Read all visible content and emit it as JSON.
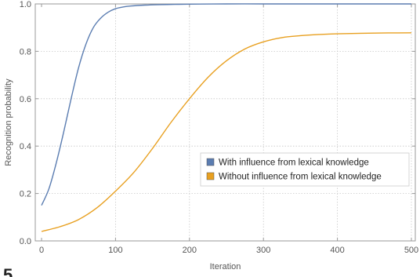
{
  "chart_data": {
    "type": "line",
    "title": "",
    "xlabel": "Iteration",
    "ylabel": "Recognition probability",
    "xlim": [
      0,
      500
    ],
    "ylim": [
      0,
      1
    ],
    "xticks": [
      0,
      100,
      200,
      300,
      400,
      500
    ],
    "yticks": [
      0.0,
      0.2,
      0.4,
      0.6,
      0.8,
      1.0
    ],
    "ytick_labels": [
      "0.0",
      "0.2",
      "0.4",
      "0.6",
      "0.8",
      "1.0"
    ],
    "grid": true,
    "legend_position": "center-right",
    "series": [
      {
        "name": "With influence from lexical knowledge",
        "color": "#5b7db1",
        "x": [
          0,
          10,
          20,
          30,
          40,
          50,
          60,
          70,
          80,
          90,
          100,
          110,
          120,
          140,
          160,
          180,
          200,
          250,
          300,
          350,
          400,
          450,
          500
        ],
        "y": [
          0.15,
          0.22,
          0.33,
          0.46,
          0.6,
          0.73,
          0.83,
          0.9,
          0.94,
          0.965,
          0.98,
          0.987,
          0.991,
          0.995,
          0.997,
          0.998,
          0.999,
          1.0,
          1.0,
          1.0,
          1.0,
          1.0,
          1.0
        ]
      },
      {
        "name": "Without influence from lexical knowledge",
        "color": "#e8a020",
        "x": [
          0,
          25,
          50,
          75,
          100,
          125,
          150,
          175,
          200,
          225,
          250,
          275,
          300,
          325,
          350,
          375,
          400,
          450,
          500
        ],
        "y": [
          0.04,
          0.06,
          0.09,
          0.14,
          0.21,
          0.29,
          0.39,
          0.5,
          0.6,
          0.69,
          0.76,
          0.81,
          0.84,
          0.858,
          0.866,
          0.871,
          0.874,
          0.877,
          0.878
        ]
      }
    ]
  },
  "corner_mark": "5"
}
